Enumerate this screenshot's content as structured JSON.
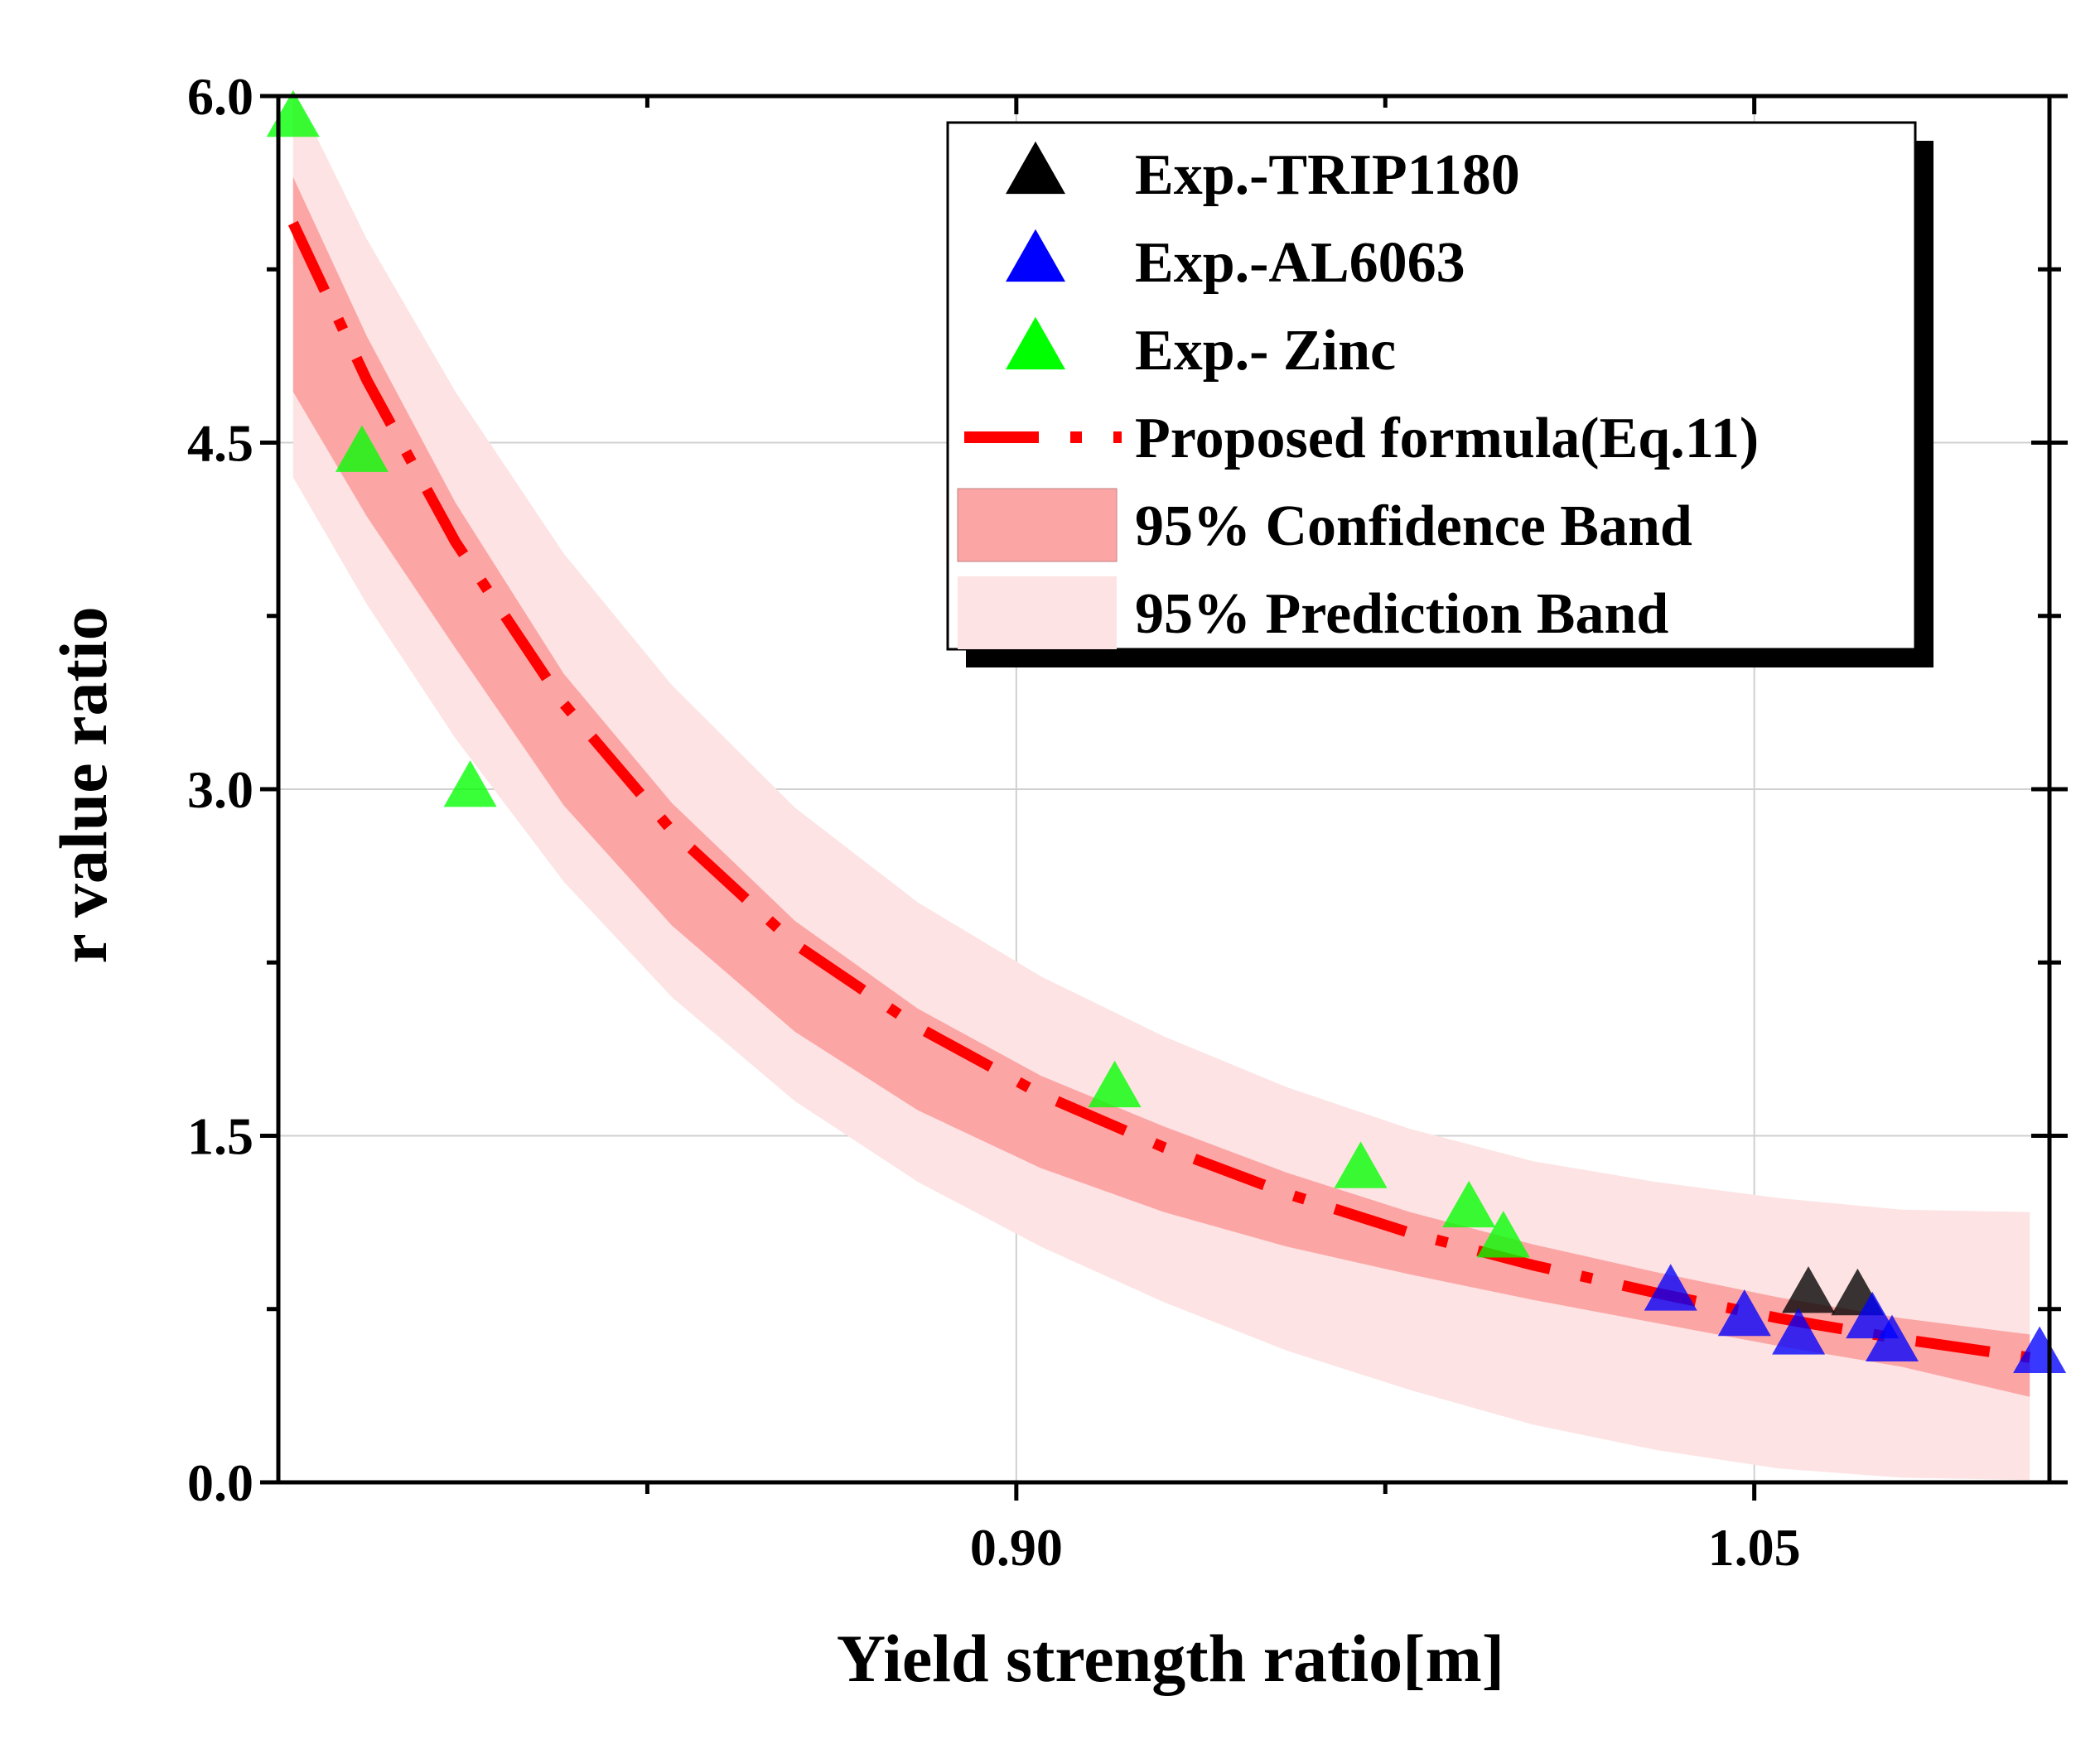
{
  "chart_data": {
    "type": "scatter",
    "xlabel": "Yield strength ratio[m]",
    "ylabel": "r value ratio",
    "xlim": [
      0.75,
      1.11
    ],
    "ylim": [
      0.0,
      6.0
    ],
    "x_ticks": [
      {
        "value": 0.9,
        "label": "0.90"
      },
      {
        "value": 1.05,
        "label": "1.05"
      }
    ],
    "x_minor_ticks": [
      0.825,
      0.975
    ],
    "y_ticks": [
      {
        "value": 0.0,
        "label": "0.0"
      },
      {
        "value": 1.5,
        "label": "1.5"
      },
      {
        "value": 3.0,
        "label": "3.0"
      },
      {
        "value": 4.5,
        "label": "4.5"
      },
      {
        "value": 6.0,
        "label": "6.0"
      }
    ],
    "y_minor_ticks": [
      0.75,
      2.25,
      3.75,
      5.25
    ],
    "grid": true,
    "legend_position": "top-right",
    "fit": {
      "name": "Proposed formula(Eq.11)",
      "color": "#ff0000",
      "x": [
        0.753,
        0.768,
        0.786,
        0.808,
        0.83,
        0.855,
        0.88,
        0.905,
        0.93,
        0.955,
        0.98,
        1.005,
        1.03,
        1.055,
        1.08,
        1.106
      ],
      "y": [
        5.45,
        4.77,
        4.07,
        3.37,
        2.82,
        2.33,
        1.97,
        1.68,
        1.45,
        1.25,
        1.08,
        0.94,
        0.82,
        0.71,
        0.62,
        0.54
      ]
    },
    "confidence_band": {
      "name": "95% Confidence Band",
      "color": "#fca5a5",
      "upper": [
        5.65,
        4.96,
        4.24,
        3.5,
        2.94,
        2.43,
        2.05,
        1.76,
        1.54,
        1.34,
        1.17,
        1.03,
        0.91,
        0.8,
        0.71,
        0.64
      ],
      "lower": [
        4.72,
        4.18,
        3.61,
        2.93,
        2.41,
        1.95,
        1.61,
        1.36,
        1.17,
        1.02,
        0.9,
        0.79,
        0.69,
        0.59,
        0.5,
        0.37
      ]
    },
    "prediction_band": {
      "name": "95% Prediction Band",
      "color": "#fde3e3",
      "upper": [
        6.03,
        5.38,
        4.72,
        4.02,
        3.45,
        2.92,
        2.51,
        2.19,
        1.93,
        1.71,
        1.53,
        1.39,
        1.3,
        1.23,
        1.18,
        1.17
      ],
      "lower": [
        4.35,
        3.8,
        3.22,
        2.6,
        2.1,
        1.65,
        1.3,
        1.02,
        0.78,
        0.57,
        0.4,
        0.25,
        0.14,
        0.06,
        0.02,
        0.01
      ]
    },
    "series": [
      {
        "name": "Exp.-TRIP1180",
        "color": "#000000",
        "x": [
          1.061,
          1.071
        ],
        "y": [
          0.81,
          0.8
        ]
      },
      {
        "name": "Exp.-AL6063",
        "color": "#0000ff",
        "x": [
          1.033,
          1.048,
          1.059,
          1.074,
          1.078,
          1.108
        ],
        "y": [
          0.82,
          0.71,
          0.63,
          0.7,
          0.6,
          0.55
        ]
      },
      {
        "name": "Exp.- Zinc",
        "color": "#00ff00",
        "x": [
          0.753,
          0.767,
          0.789,
          0.92,
          0.97,
          0.992,
          0.999
        ],
        "y": [
          5.9,
          4.45,
          3.0,
          1.7,
          1.35,
          1.18,
          1.05
        ]
      }
    ],
    "legend": [
      {
        "label": "Exp.-TRIP1180",
        "kind": "marker",
        "color": "#000000"
      },
      {
        "label": "Exp.-AL6063",
        "kind": "marker",
        "color": "#0000ff"
      },
      {
        "label": "Exp.- Zinc",
        "kind": "marker",
        "color": "#00ff00"
      },
      {
        "label": "Proposed formula(Eq.11)",
        "kind": "line",
        "color": "#ff0000"
      },
      {
        "label": "95% Confidence Band",
        "kind": "patch",
        "color": "#fca5a5"
      },
      {
        "label": "95% Prediction Band",
        "kind": "patch",
        "color": "#fde3e3"
      }
    ]
  }
}
